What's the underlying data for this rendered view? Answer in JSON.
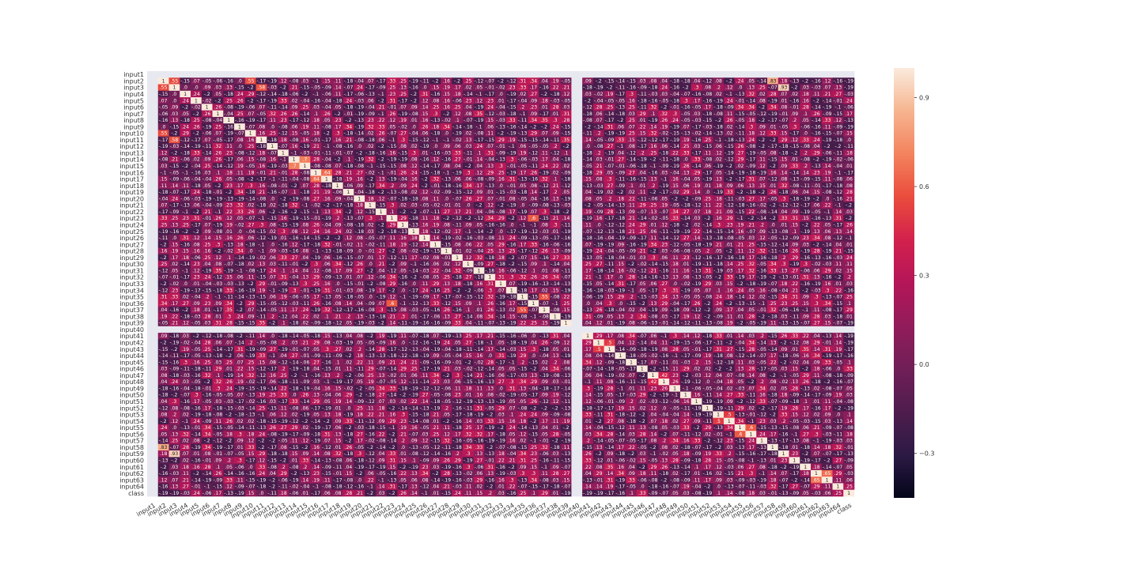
{
  "chart_data": {
    "type": "heatmap",
    "title": "",
    "xlabel": "",
    "ylabel": "",
    "labels": [
      "input1",
      "input2",
      "input3",
      "input4",
      "input5",
      "input6",
      "input7",
      "input8",
      "input9",
      "input10",
      "input11",
      "input12",
      "input13",
      "input14",
      "input15",
      "input16",
      "input17",
      "input18",
      "input19",
      "input20",
      "input21",
      "input22",
      "input23",
      "input24",
      "input25",
      "input26",
      "input27",
      "input28",
      "input29",
      "input30",
      "input31",
      "input32",
      "input33",
      "input34",
      "input35",
      "input36",
      "input37",
      "input38",
      "input39",
      "input40",
      "input41",
      "input42",
      "input43",
      "input44",
      "input45",
      "input46",
      "input47",
      "input48",
      "input49",
      "input50",
      "input51",
      "input52",
      "input53",
      "input54",
      "input55",
      "input56",
      "input57",
      "input58",
      "input59",
      "input60",
      "input61",
      "input62",
      "input63",
      "input64",
      "class"
    ],
    "empty_labels": [
      "input1",
      "input40"
    ],
    "diagonal_value": 1,
    "annotation_format": "2 decimal places, leading zero dropped",
    "value_range": [
      -0.45,
      1.0
    ],
    "strong_pairs": [
      {
        "a": "input2",
        "b": "input3",
        "value": 0.55
      },
      {
        "a": "input2",
        "b": "input10",
        "value": 0.55
      },
      {
        "a": "input2",
        "b": "input58",
        "value": 0.83
      },
      {
        "a": "input3",
        "b": "input59",
        "value": 0.93
      },
      {
        "a": "input11",
        "b": "input3",
        "value": 0.58
      },
      {
        "a": "input14",
        "b": "input15",
        "value": 0.7
      },
      {
        "a": "input16",
        "b": "input17",
        "value": 0.64
      },
      {
        "a": "input23",
        "b": "input36",
        "value": 0.6
      },
      {
        "a": "input35",
        "b": "input37",
        "value": 0.55
      },
      {
        "a": "input42",
        "b": "input43",
        "value": 0.5
      },
      {
        "a": "input55",
        "b": "input56",
        "value": 0.6
      },
      {
        "a": "input62",
        "b": "input63",
        "value": 0.65
      },
      {
        "a": "input53",
        "b": "input54",
        "value": 0.5
      },
      {
        "a": "input47",
        "b": "input48",
        "value": 0.42
      }
    ],
    "colorbar": {
      "ticks": [
        0.9,
        0.6,
        0.3,
        0.0,
        -0.3
      ],
      "tick_labels": [
        "0.9",
        "0.6",
        "0.3",
        "0.0",
        "−0.3"
      ],
      "colormap": "rocket",
      "min": -0.45,
      "max": 1.0
    },
    "colors": {
      "empty_row_col": "#e8e8f0",
      "background": "#ffffff"
    }
  }
}
